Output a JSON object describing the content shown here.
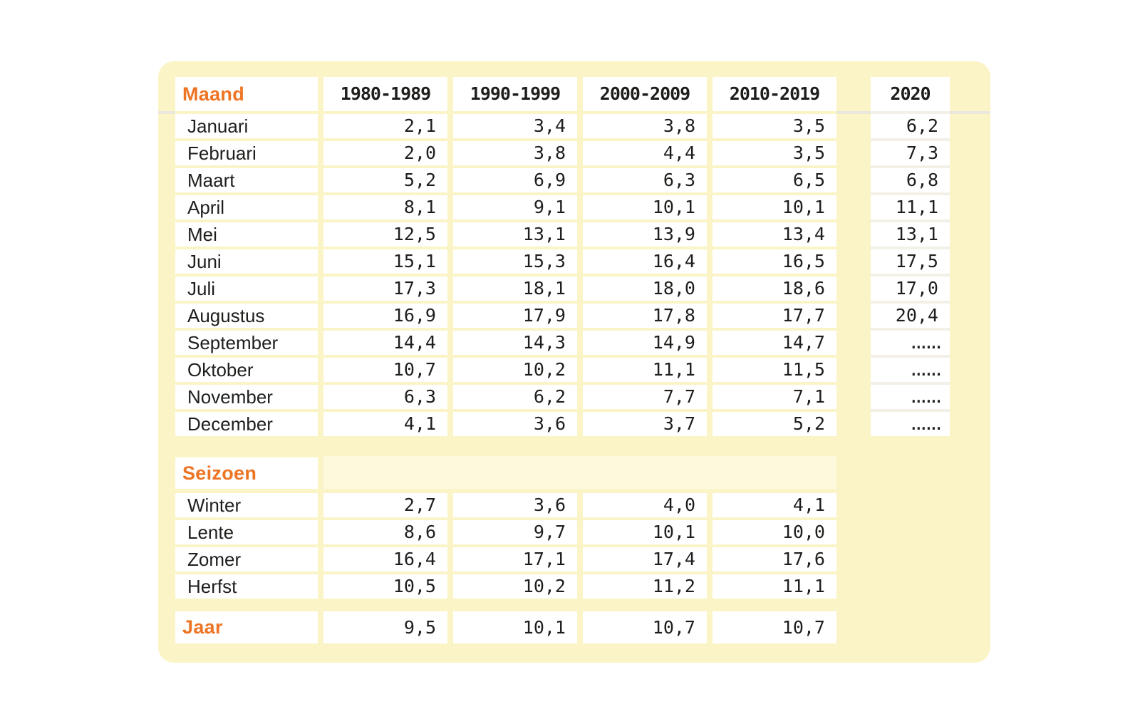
{
  "palette": {
    "page_bg": "#ffffff",
    "panel_bg": "#fbf4c6",
    "cell_bg": "#ffffff",
    "accent_orange": "#ed7423",
    "text_dark": "#1f1e1c",
    "seizoen_band_bg": "#fdf9dd",
    "backing_2020_bg": "#f2f0e7",
    "header_shadow": "#eae8dd"
  },
  "chart_data": {
    "type": "table",
    "row_header_label": "Maand",
    "decade_columns": [
      "1980-1989",
      "1990-1999",
      "2000-2009",
      "2010-2019"
    ],
    "col_2020": "2020",
    "maand": {
      "header": "Maand",
      "rows": [
        {
          "label": "Januari",
          "v": [
            "2,1",
            "3,4",
            "3,8",
            "3,5"
          ],
          "v2020": "6,2"
        },
        {
          "label": "Februari",
          "v": [
            "2,0",
            "3,8",
            "4,4",
            "3,5"
          ],
          "v2020": "7,3"
        },
        {
          "label": "Maart",
          "v": [
            "5,2",
            "6,9",
            "6,3",
            "6,5"
          ],
          "v2020": "6,8"
        },
        {
          "label": "April",
          "v": [
            "8,1",
            "9,1",
            "10,1",
            "10,1"
          ],
          "v2020": "11,1"
        },
        {
          "label": "Mei",
          "v": [
            "12,5",
            "13,1",
            "13,9",
            "13,4"
          ],
          "v2020": "13,1"
        },
        {
          "label": "Juni",
          "v": [
            "15,1",
            "15,3",
            "16,4",
            "16,5"
          ],
          "v2020": "17,5"
        },
        {
          "label": "Juli",
          "v": [
            "17,3",
            "18,1",
            "18,0",
            "18,6"
          ],
          "v2020": "17,0"
        },
        {
          "label": "Augustus",
          "v": [
            "16,9",
            "17,9",
            "17,8",
            "17,7"
          ],
          "v2020": "20,4"
        },
        {
          "label": "September",
          "v": [
            "14,4",
            "14,3",
            "14,9",
            "14,7"
          ],
          "v2020": "......"
        },
        {
          "label": "Oktober",
          "v": [
            "10,7",
            "10,2",
            "11,1",
            "11,5"
          ],
          "v2020": "......"
        },
        {
          "label": "November",
          "v": [
            "6,3",
            "6,2",
            "7,7",
            "7,1"
          ],
          "v2020": "......"
        },
        {
          "label": "December",
          "v": [
            "4,1",
            "3,6",
            "3,7",
            "5,2"
          ],
          "v2020": "......"
        }
      ]
    },
    "seizoen": {
      "header": "Seizoen",
      "rows": [
        {
          "label": "Winter",
          "v": [
            "2,7",
            "3,6",
            "4,0",
            "4,1"
          ]
        },
        {
          "label": "Lente",
          "v": [
            "8,6",
            "9,7",
            "10,1",
            "10,0"
          ]
        },
        {
          "label": "Zomer",
          "v": [
            "16,4",
            "17,1",
            "17,4",
            "17,6"
          ]
        },
        {
          "label": "Herfst",
          "v": [
            "10,5",
            "10,2",
            "11,2",
            "11,1"
          ]
        }
      ]
    },
    "jaar": {
      "header": "Jaar",
      "v": [
        "9,5",
        "10,1",
        "10,7",
        "10,7"
      ]
    }
  }
}
